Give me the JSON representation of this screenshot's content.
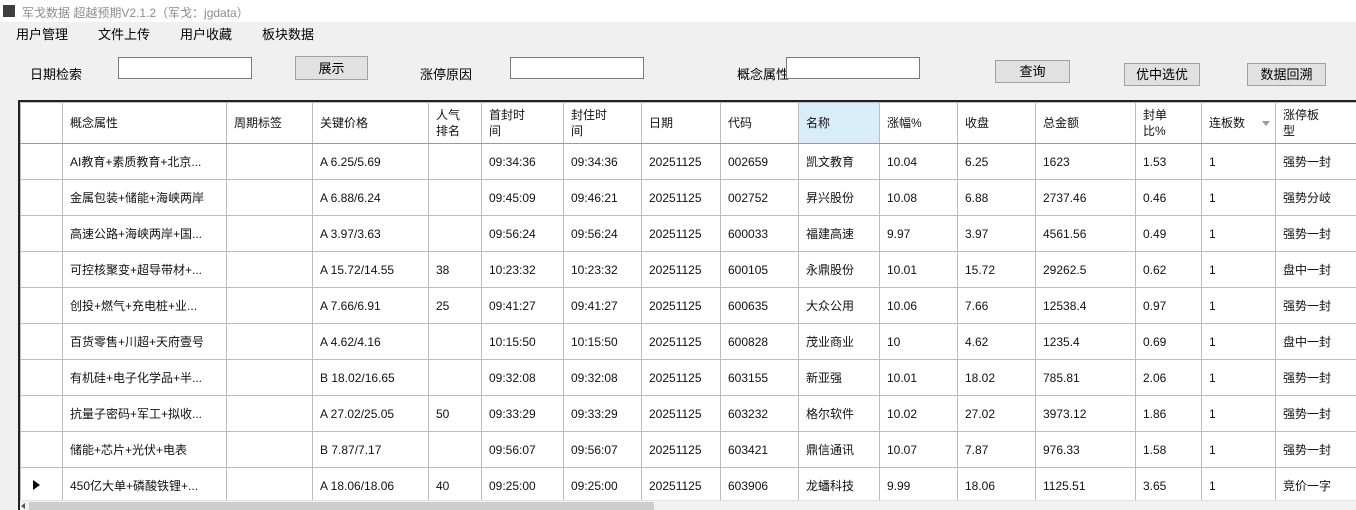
{
  "window": {
    "title": "军戈数据 超越预期V2.1.2（军戈：jgdata）"
  },
  "menu": {
    "items": [
      "用户管理",
      "文件上传",
      "用户收藏",
      "板块数据"
    ]
  },
  "toolbar": {
    "date_label": "日期检索",
    "date_value": "",
    "show_button": "展示",
    "reason_label": "涨停原因",
    "reason_value": "",
    "concept_label": "概念属性",
    "concept_value": "",
    "query_button": "查询",
    "best_pick_button": "优中选优",
    "backtrack_button": "数据回溯"
  },
  "colors": {
    "highlighted_header": "#d9ecf9",
    "button_face": "#e1e1e1",
    "window_background": "#f0f0f0"
  },
  "table": {
    "highlighted_column": "name",
    "filter_column": "consecutive_boards",
    "current_row_index": 9,
    "columns": [
      {
        "field": "selector",
        "label": ""
      },
      {
        "field": "concept",
        "label": "概念属性"
      },
      {
        "field": "cycle_tag",
        "label": "周期标签"
      },
      {
        "field": "key_price",
        "label": "关键价格"
      },
      {
        "field": "rank",
        "label": "人气排名"
      },
      {
        "field": "first_seal_time",
        "label": "首封时间"
      },
      {
        "field": "seal_time",
        "label": "封住时间"
      },
      {
        "field": "date",
        "label": "日期"
      },
      {
        "field": "code",
        "label": "代码"
      },
      {
        "field": "name",
        "label": "名称"
      },
      {
        "field": "change_pct",
        "label": "涨幅%"
      },
      {
        "field": "close",
        "label": "收盘"
      },
      {
        "field": "total_amount",
        "label": "总金额"
      },
      {
        "field": "seal_ratio_pct",
        "label": "封单比%"
      },
      {
        "field": "consecutive_boards",
        "label": "连板数"
      },
      {
        "field": "board_type",
        "label": "涨停板型"
      }
    ],
    "rows": [
      {
        "concept": "AI教育+素质教育+北京...",
        "cycle_tag": "",
        "key_price": "A 6.25/5.69",
        "rank": "",
        "first_seal_time": "09:34:36",
        "seal_time": "09:34:36",
        "date": "20251125",
        "code": "002659",
        "name": "凯文教育",
        "change_pct": "10.04",
        "close": "6.25",
        "total_amount": "1623",
        "seal_ratio_pct": "1.53",
        "consecutive_boards": "1",
        "board_type": "强势一封"
      },
      {
        "concept": "金属包装+储能+海峡两岸",
        "cycle_tag": "",
        "key_price": "A 6.88/6.24",
        "rank": "",
        "first_seal_time": "09:45:09",
        "seal_time": "09:46:21",
        "date": "20251125",
        "code": "002752",
        "name": "昇兴股份",
        "change_pct": "10.08",
        "close": "6.88",
        "total_amount": "2737.46",
        "seal_ratio_pct": "0.46",
        "consecutive_boards": "1",
        "board_type": "强势分岐"
      },
      {
        "concept": "高速公路+海峡两岸+国...",
        "cycle_tag": "",
        "key_price": "A 3.97/3.63",
        "rank": "",
        "first_seal_time": "09:56:24",
        "seal_time": "09:56:24",
        "date": "20251125",
        "code": "600033",
        "name": "福建高速",
        "change_pct": "9.97",
        "close": "3.97",
        "total_amount": "4561.56",
        "seal_ratio_pct": "0.49",
        "consecutive_boards": "1",
        "board_type": "强势一封"
      },
      {
        "concept": "可控核聚变+超导带材+...",
        "cycle_tag": "",
        "key_price": "A 15.72/14.55",
        "rank": "38",
        "first_seal_time": "10:23:32",
        "seal_time": "10:23:32",
        "date": "20251125",
        "code": "600105",
        "name": "永鼎股份",
        "change_pct": "10.01",
        "close": "15.72",
        "total_amount": "29262.5",
        "seal_ratio_pct": "0.62",
        "consecutive_boards": "1",
        "board_type": "盘中一封"
      },
      {
        "concept": "创投+燃气+充电桩+业...",
        "cycle_tag": "",
        "key_price": "A 7.66/6.91",
        "rank": "25",
        "first_seal_time": "09:41:27",
        "seal_time": "09:41:27",
        "date": "20251125",
        "code": "600635",
        "name": "大众公用",
        "change_pct": "10.06",
        "close": "7.66",
        "total_amount": "12538.4",
        "seal_ratio_pct": "0.97",
        "consecutive_boards": "1",
        "board_type": "强势一封"
      },
      {
        "concept": "百货零售+川超+天府壹号",
        "cycle_tag": "",
        "key_price": "A 4.62/4.16",
        "rank": "",
        "first_seal_time": "10:15:50",
        "seal_time": "10:15:50",
        "date": "20251125",
        "code": "600828",
        "name": "茂业商业",
        "change_pct": "10",
        "close": "4.62",
        "total_amount": "1235.4",
        "seal_ratio_pct": "0.69",
        "consecutive_boards": "1",
        "board_type": "盘中一封"
      },
      {
        "concept": "有机硅+电子化学品+半...",
        "cycle_tag": "",
        "key_price": "B 18.02/16.65",
        "rank": "",
        "first_seal_time": "09:32:08",
        "seal_time": "09:32:08",
        "date": "20251125",
        "code": "603155",
        "name": "新亚强",
        "change_pct": "10.01",
        "close": "18.02",
        "total_amount": "785.81",
        "seal_ratio_pct": "2.06",
        "consecutive_boards": "1",
        "board_type": "强势一封"
      },
      {
        "concept": "抗量子密码+军工+拟收...",
        "cycle_tag": "",
        "key_price": "A 27.02/25.05",
        "rank": "50",
        "first_seal_time": "09:33:29",
        "seal_time": "09:33:29",
        "date": "20251125",
        "code": "603232",
        "name": "格尔软件",
        "change_pct": "10.02",
        "close": "27.02",
        "total_amount": "3973.12",
        "seal_ratio_pct": "1.86",
        "consecutive_boards": "1",
        "board_type": "强势一封"
      },
      {
        "concept": "储能+芯片+光伏+电表",
        "cycle_tag": "",
        "key_price": "B 7.87/7.17",
        "rank": "",
        "first_seal_time": "09:56:07",
        "seal_time": "09:56:07",
        "date": "20251125",
        "code": "603421",
        "name": "鼎信通讯",
        "change_pct": "10.07",
        "close": "7.87",
        "total_amount": "976.33",
        "seal_ratio_pct": "1.58",
        "consecutive_boards": "1",
        "board_type": "强势一封"
      },
      {
        "concept": "450亿大单+磷酸铁锂+...",
        "cycle_tag": "",
        "key_price": "A 18.06/18.06",
        "rank": "40",
        "first_seal_time": "09:25:00",
        "seal_time": "09:25:00",
        "date": "20251125",
        "code": "603906",
        "name": "龙蟠科技",
        "change_pct": "9.99",
        "close": "18.06",
        "total_amount": "1125.51",
        "seal_ratio_pct": "3.65",
        "consecutive_boards": "1",
        "board_type": "竞价一字"
      }
    ]
  }
}
